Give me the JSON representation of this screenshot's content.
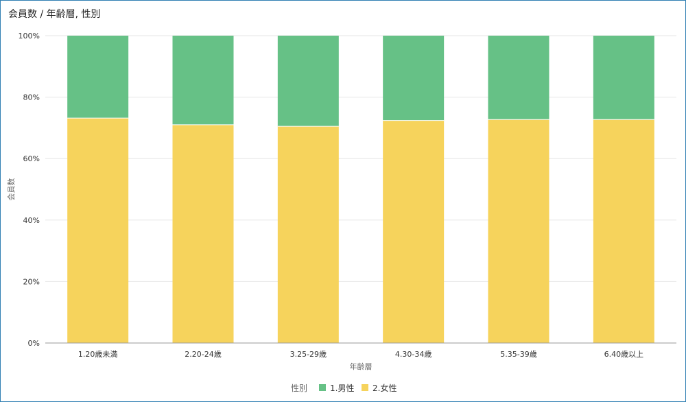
{
  "title": "会員数 / 年齢層, 性別",
  "colors": {
    "male": "#66c186",
    "female": "#f6d35c",
    "frame": "#2f7fb2",
    "grid": "#e6e6e6"
  },
  "chart_data": {
    "type": "bar",
    "stacked": "percent",
    "categories": [
      "1.20歳未満",
      "2.20-24歳",
      "3.25-29歳",
      "4.30-34歳",
      "5.35-39歳",
      "6.40歳以上"
    ],
    "series": [
      {
        "name": "2.女性",
        "values": [
          73.2,
          71.0,
          70.5,
          72.4,
          72.7,
          72.7
        ]
      },
      {
        "name": "1.男性",
        "values": [
          26.8,
          29.0,
          29.5,
          27.6,
          27.3,
          27.3
        ]
      }
    ],
    "ylim": [
      0,
      100
    ],
    "yticks": [
      "0%",
      "20%",
      "40%",
      "60%",
      "80%",
      "100%"
    ],
    "xlabel": "年齢層",
    "ylabel": "会員数",
    "legend_title": "性別",
    "legend_position": "bottom",
    "grid": true
  }
}
